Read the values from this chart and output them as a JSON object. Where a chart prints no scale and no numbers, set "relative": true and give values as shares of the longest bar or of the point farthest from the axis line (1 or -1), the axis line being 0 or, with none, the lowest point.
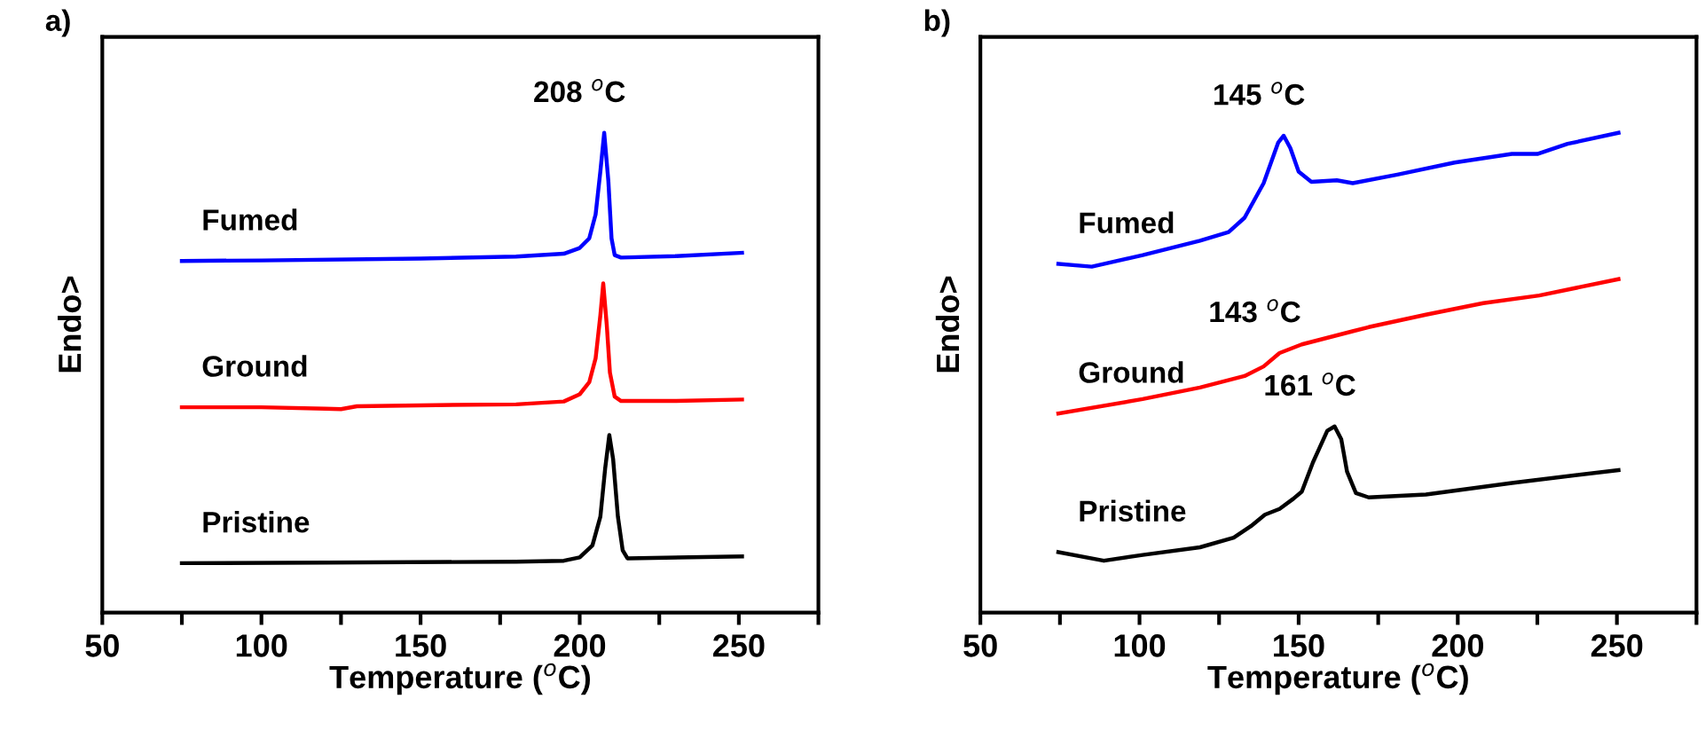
{
  "chart_data": [
    {
      "type": "line",
      "title": "a)",
      "xlabel": "Temperature ($^{o}$C)",
      "ylabel": "Endo>",
      "relative": true,
      "legend": false,
      "grid": false,
      "xlim": [
        50,
        275
      ],
      "xticks": [
        50,
        {
          "value": 75,
          "label": null
        },
        100,
        {
          "value": 125,
          "label": null
        },
        150,
        {
          "value": 175,
          "label": null
        },
        200,
        {
          "value": 225,
          "label": null
        },
        250,
        {
          "value": 275,
          "label": null
        }
      ],
      "annotations": [
        {
          "text": "208 $^{o}$C",
          "x": 207.7,
          "y": 1.0
        }
      ],
      "series": [
        {
          "name": "Fumed",
          "color": "#0000ff",
          "x": [
            75,
            100,
            150,
            180,
            195,
            200,
            203,
            205,
            206.5,
            207.7,
            209,
            210,
            211,
            213,
            230,
            251
          ],
          "values": [
            0.733,
            0.734,
            0.738,
            0.742,
            0.748,
            0.76,
            0.78,
            0.83,
            0.92,
            1.0,
            0.9,
            0.78,
            0.745,
            0.74,
            0.743,
            0.75
          ]
        },
        {
          "name": "Ground",
          "color": "#ff0000",
          "x": [
            75,
            100,
            120,
            125,
            130,
            150,
            180,
            195,
            200,
            203,
            205,
            206.5,
            207.4,
            208.5,
            209.5,
            211,
            213,
            230,
            251
          ],
          "values": [
            0.428,
            0.428,
            0.425,
            0.424,
            0.43,
            0.432,
            0.434,
            0.44,
            0.455,
            0.48,
            0.53,
            0.62,
            0.686,
            0.6,
            0.5,
            0.45,
            0.441,
            0.441,
            0.444
          ]
        },
        {
          "name": "Pristine",
          "color": "#000000",
          "x": [
            75,
            120,
            180,
            195,
            200,
            204,
            206.5,
            208,
            209.3,
            210.5,
            212,
            213.5,
            215,
            251
          ],
          "values": [
            0.103,
            0.104,
            0.106,
            0.108,
            0.115,
            0.14,
            0.2,
            0.3,
            0.37,
            0.32,
            0.2,
            0.13,
            0.113,
            0.117
          ]
        }
      ]
    },
    {
      "type": "line",
      "title": "b)",
      "xlabel": "Temperature ($^{o}$C)",
      "ylabel": "Endo>",
      "relative": true,
      "legend": false,
      "grid": false,
      "xlim": [
        50,
        275
      ],
      "xticks": [
        50,
        {
          "value": 75,
          "label": null
        },
        100,
        {
          "value": 125,
          "label": null
        },
        150,
        {
          "value": 175,
          "label": null
        },
        200,
        {
          "value": 225,
          "label": null
        },
        250,
        {
          "value": 275,
          "label": null
        }
      ],
      "annotations": [
        {
          "text": "145 $^{o}$C",
          "x": 145.3,
          "y": 0.994
        },
        {
          "text": "143 $^{o}$C",
          "x": 144,
          "y": 0.541
        },
        {
          "text": "161 $^{o}$C",
          "x": 161.3,
          "y": 0.388
        }
      ],
      "series": [
        {
          "name": "Fumed",
          "color": "#0000ff",
          "x": [
            74.5,
            85,
            101,
            119,
            128,
            133,
            139,
            143.6,
            145.3,
            147.4,
            150,
            154,
            162,
            167,
            181,
            199,
            217,
            225,
            234.5,
            250.5
          ],
          "values": [
            0.727,
            0.721,
            0.745,
            0.775,
            0.793,
            0.823,
            0.895,
            0.98,
            0.994,
            0.968,
            0.919,
            0.898,
            0.901,
            0.895,
            0.913,
            0.938,
            0.956,
            0.956,
            0.977,
            1.0
          ]
        },
        {
          "name": "Ground",
          "color": "#ff0000",
          "x": [
            74.5,
            101,
            119,
            133,
            139,
            144,
            151,
            172,
            190,
            208,
            225.6,
            250.5
          ],
          "values": [
            0.415,
            0.445,
            0.469,
            0.493,
            0.513,
            0.541,
            0.559,
            0.595,
            0.621,
            0.645,
            0.661,
            0.695
          ]
        },
        {
          "name": "Pristine",
          "color": "#000000",
          "x": [
            74.5,
            88.8,
            101,
            119,
            129.6,
            135,
            139.4,
            144,
            148.3,
            151,
            154.5,
            159,
            161.3,
            163.4,
            165.2,
            168,
            172,
            190,
            217,
            250.5
          ],
          "values": [
            0.126,
            0.108,
            0.12,
            0.136,
            0.156,
            0.18,
            0.204,
            0.216,
            0.237,
            0.252,
            0.313,
            0.379,
            0.388,
            0.361,
            0.294,
            0.249,
            0.24,
            0.246,
            0.27,
            0.297
          ]
        }
      ]
    }
  ]
}
